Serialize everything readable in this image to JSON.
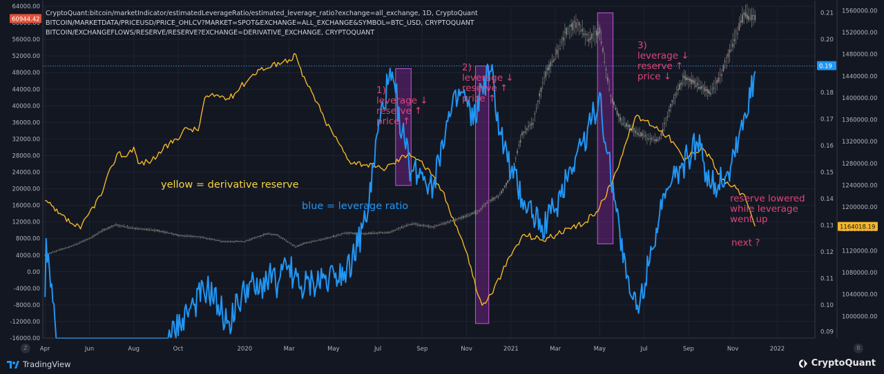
{
  "header": {
    "line1": "CryptoQuant:bitcoin/marketIndicator/estimatedLeverageRatio/estimated_leverage_ratio?exchange=all_exchange, 1D, CryptoQuant",
    "line2": "BITCOIN/MARKETDATA/PRICEUSD/PRICE_OHLCV?MARKET=SPOT&EXCHANGE=ALL_EXCHANGE&SYMBOL=BTC_USD, CRYPTOQUANT",
    "line3": "BITCOIN/EXCHANGEFLOWS/RESERVE/RESERVE?EXCHANGE=DERIVATIVE_EXCHANGE, CRYPTOQUANT"
  },
  "annotations": {
    "a1": "1)\nleverage ↓\nreserve ↑\nprice ↑",
    "a2": "2)\nleverage ↓\nreserve ↑\nprice ↑",
    "a3": "3)\nleverage ↓\nreserve ↑\nprice ↓",
    "a4": "reserve lowered\nwhile leverage\nwent up",
    "a5": "next ?",
    "yellow_label": "yellow = derivative reserve",
    "blue_label": "blue = leverage ratio"
  },
  "footer": {
    "tradingview": "TradingView",
    "cryptoquant": "CryptoQuant",
    "left_corner": "Z",
    "right_corner": "B"
  },
  "colors": {
    "background": "#131722",
    "leverage": "#2196f3",
    "reserve": "#f5b727",
    "price": "#a0a0a0",
    "annotation": "#e0447a",
    "highlight": "#9c27b0",
    "last_price_badge": "#e0533d"
  },
  "chart_data": {
    "type": "line",
    "x_tick_labels": [
      "Apr",
      "Jun",
      "Aug",
      "Oct",
      "2020",
      "Mar",
      "May",
      "Jul",
      "Sep",
      "Nov",
      "2021",
      "Mar",
      "May",
      "Jul",
      "Sep",
      "Nov",
      "2022"
    ],
    "x_tick_months": [
      0,
      2,
      4,
      6,
      9,
      11,
      13,
      15,
      17,
      19,
      21,
      23,
      25,
      27,
      29,
      31,
      33
    ],
    "x_range": [
      -0.1,
      34.7
    ],
    "left_axis": {
      "range": [
        -16000,
        64000
      ],
      "tick_labels": [
        "64000.00",
        "60000.00",
        "56000.00",
        "52000.00",
        "48000.00",
        "44000.00",
        "40000.00",
        "36000.00",
        "32000.00",
        "28000.00",
        "24000.00",
        "20000.00",
        "16000.00",
        "12000.00",
        "8000.00",
        "4000.00",
        "0.00",
        "-4000.00",
        "-8000.00",
        "-12000.00",
        "-16000.00"
      ],
      "badge": "60944.42",
      "badge_value": 60944.42
    },
    "leverage_axis": {
      "range": [
        0.0875,
        0.2125
      ],
      "tick_labels": [
        "0.21",
        "0.20",
        "0.19",
        "0.18",
        "0.17",
        "0.16",
        "0.15",
        "0.14",
        "0.13",
        "0.12",
        "0.11",
        "0.10",
        "0.09"
      ],
      "badge": "0.19",
      "badge_value": 0.19
    },
    "reserve_axis": {
      "range": [
        960000,
        1568000
      ],
      "tick_labels": [
        "1560000.00",
        "1520000.00",
        "1480000.00",
        "1440000.00",
        "1400000.00",
        "1360000.00",
        "1320000.00",
        "1280000.00",
        "1240000.00",
        "1200000.00",
        "1160000.00",
        "1120000.00",
        "1080000.00",
        "1040000.00",
        "1000000.00"
      ],
      "badge": "1164018.19",
      "badge_value": 1164018.19
    },
    "series": [
      {
        "name": "derivative reserve",
        "axis": "reserve",
        "points": [
          [
            0,
            1212000
          ],
          [
            0.6,
            1188000
          ],
          [
            1.2,
            1170000
          ],
          [
            1.6,
            1160000
          ],
          [
            2.0,
            1190000
          ],
          [
            2.6,
            1228000
          ],
          [
            3.0,
            1275000
          ],
          [
            3.3,
            1300000
          ],
          [
            3.6,
            1292000
          ],
          [
            4.0,
            1310000
          ],
          [
            4.2,
            1280000
          ],
          [
            4.8,
            1285000
          ],
          [
            5.3,
            1305000
          ],
          [
            5.9,
            1325000
          ],
          [
            6.4,
            1345000
          ],
          [
            6.9,
            1340000
          ],
          [
            7.2,
            1400000
          ],
          [
            7.8,
            1405000
          ],
          [
            8.3,
            1398000
          ],
          [
            8.8,
            1420000
          ],
          [
            9.3,
            1440000
          ],
          [
            9.6,
            1452000
          ],
          [
            10.1,
            1455000
          ],
          [
            10.5,
            1465000
          ],
          [
            11.0,
            1470000
          ],
          [
            11.3,
            1480000
          ],
          [
            11.6,
            1440000
          ],
          [
            12.1,
            1405000
          ],
          [
            12.6,
            1360000
          ],
          [
            13.2,
            1320000
          ],
          [
            13.7,
            1285000
          ],
          [
            14.5,
            1278000
          ],
          [
            15.2,
            1270000
          ],
          [
            15.7,
            1280000
          ],
          [
            16.4,
            1300000
          ],
          [
            16.9,
            1285000
          ],
          [
            17.4,
            1260000
          ],
          [
            17.9,
            1230000
          ],
          [
            18.4,
            1180000
          ],
          [
            18.8,
            1140000
          ],
          [
            19.2,
            1090000
          ],
          [
            19.5,
            1040000
          ],
          [
            19.7,
            1020000
          ],
          [
            20.1,
            1040000
          ],
          [
            20.6,
            1080000
          ],
          [
            21.1,
            1120000
          ],
          [
            21.6,
            1150000
          ],
          [
            22.4,
            1140000
          ],
          [
            23.1,
            1150000
          ],
          [
            23.7,
            1160000
          ],
          [
            24.3,
            1170000
          ],
          [
            25.0,
            1200000
          ],
          [
            25.6,
            1250000
          ],
          [
            26.2,
            1320000
          ],
          [
            26.6,
            1365000
          ],
          [
            27.1,
            1358000
          ],
          [
            27.8,
            1340000
          ],
          [
            28.3,
            1320000
          ],
          [
            28.8,
            1285000
          ],
          [
            29.2,
            1300000
          ],
          [
            29.6,
            1310000
          ],
          [
            30.0,
            1290000
          ],
          [
            30.5,
            1250000
          ],
          [
            31.0,
            1238000
          ],
          [
            31.4,
            1225000
          ],
          [
            31.6,
            1212000
          ],
          [
            31.8,
            1190000
          ],
          [
            32.0,
            1165000
          ]
        ]
      },
      {
        "name": "leverage ratio",
        "axis": "leverage",
        "points": [
          [
            0,
            0.103
          ],
          [
            0.05,
            0.125
          ],
          [
            0.6,
            0.077
          ],
          [
            1.8,
            0.062
          ],
          [
            2.6,
            0.074
          ],
          [
            3.4,
            0.072
          ],
          [
            4.2,
            0.068
          ],
          [
            5.1,
            0.078
          ],
          [
            5.7,
            0.088
          ],
          [
            6.2,
            0.095
          ],
          [
            6.7,
            0.1
          ],
          [
            7.3,
            0.106
          ],
          [
            7.8,
            0.1
          ],
          [
            8.2,
            0.093
          ],
          [
            8.7,
            0.1
          ],
          [
            9.2,
            0.108
          ],
          [
            9.6,
            0.104
          ],
          [
            10.1,
            0.112
          ],
          [
            10.5,
            0.108
          ],
          [
            11.0,
            0.115
          ],
          [
            11.5,
            0.106
          ],
          [
            12.1,
            0.108
          ],
          [
            12.6,
            0.11
          ],
          [
            13.1,
            0.112
          ],
          [
            13.6,
            0.114
          ],
          [
            14.1,
            0.122
          ],
          [
            14.6,
            0.138
          ],
          [
            15.0,
            0.165
          ],
          [
            15.5,
            0.185
          ],
          [
            15.8,
            0.18
          ],
          [
            16.1,
            0.165
          ],
          [
            16.5,
            0.15
          ],
          [
            17.0,
            0.15
          ],
          [
            17.5,
            0.145
          ],
          [
            17.9,
            0.162
          ],
          [
            18.3,
            0.172
          ],
          [
            18.8,
            0.18
          ],
          [
            19.3,
            0.168
          ],
          [
            19.7,
            0.182
          ],
          [
            20.1,
            0.188
          ],
          [
            20.5,
            0.165
          ],
          [
            21.0,
            0.15
          ],
          [
            21.5,
            0.14
          ],
          [
            22.0,
            0.134
          ],
          [
            22.4,
            0.13
          ],
          [
            23.0,
            0.136
          ],
          [
            23.5,
            0.148
          ],
          [
            24.0,
            0.158
          ],
          [
            24.6,
            0.168
          ],
          [
            25.0,
            0.18
          ],
          [
            25.3,
            0.158
          ],
          [
            25.6,
            0.146
          ],
          [
            25.9,
            0.128
          ],
          [
            26.2,
            0.11
          ],
          [
            26.5,
            0.102
          ],
          [
            26.8,
            0.1
          ],
          [
            27.3,
            0.122
          ],
          [
            27.8,
            0.136
          ],
          [
            28.4,
            0.148
          ],
          [
            29.0,
            0.156
          ],
          [
            29.4,
            0.161
          ],
          [
            29.8,
            0.15
          ],
          [
            30.2,
            0.146
          ],
          [
            30.8,
            0.15
          ],
          [
            31.3,
            0.165
          ],
          [
            31.8,
            0.178
          ],
          [
            32.0,
            0.188
          ]
        ]
      },
      {
        "name": "price",
        "axis": "left",
        "points": [
          [
            0,
            4100
          ],
          [
            0.5,
            5000
          ],
          [
            1.2,
            6200
          ],
          [
            2.0,
            8000
          ],
          [
            2.6,
            10000
          ],
          [
            3.2,
            11300
          ],
          [
            4.0,
            10500
          ],
          [
            5.0,
            10000
          ],
          [
            6.0,
            8800
          ],
          [
            7.0,
            8400
          ],
          [
            8.0,
            7300
          ],
          [
            9.0,
            7300
          ],
          [
            10.0,
            9200
          ],
          [
            10.5,
            8800
          ],
          [
            11.3,
            6000
          ],
          [
            11.7,
            6900
          ],
          [
            12.5,
            7800
          ],
          [
            13.5,
            9300
          ],
          [
            14.5,
            9200
          ],
          [
            15.5,
            9500
          ],
          [
            16.5,
            11600
          ],
          [
            17.5,
            10800
          ],
          [
            18.5,
            12500
          ],
          [
            19.5,
            14500
          ],
          [
            20.0,
            17000
          ],
          [
            20.5,
            18500
          ],
          [
            21.0,
            23000
          ],
          [
            21.5,
            33000
          ],
          [
            22.0,
            36000
          ],
          [
            22.5,
            47000
          ],
          [
            23.0,
            52000
          ],
          [
            23.5,
            58000
          ],
          [
            24.0,
            60000
          ],
          [
            24.5,
            56000
          ],
          [
            25.0,
            58000
          ],
          [
            25.5,
            42000
          ],
          [
            26.0,
            36000
          ],
          [
            26.6,
            34000
          ],
          [
            27.2,
            32000
          ],
          [
            27.7,
            32000
          ],
          [
            28.2,
            40000
          ],
          [
            28.8,
            47000
          ],
          [
            29.4,
            45000
          ],
          [
            30.0,
            43000
          ],
          [
            30.5,
            48000
          ],
          [
            31.0,
            55000
          ],
          [
            31.5,
            62000
          ],
          [
            32.0,
            61000
          ]
        ]
      }
    ],
    "highlight_boxes": [
      {
        "month_from": 15.8,
        "month_to": 16.5,
        "leverage_top": 0.189,
        "leverage_bottom": 0.145
      },
      {
        "month_from": 19.4,
        "month_to": 20.0,
        "leverage_top": 0.19,
        "leverage_bottom": 0.093
      },
      {
        "month_from": 24.9,
        "month_to": 25.6,
        "leverage_top": 0.21,
        "leverage_bottom": 0.123
      }
    ]
  }
}
